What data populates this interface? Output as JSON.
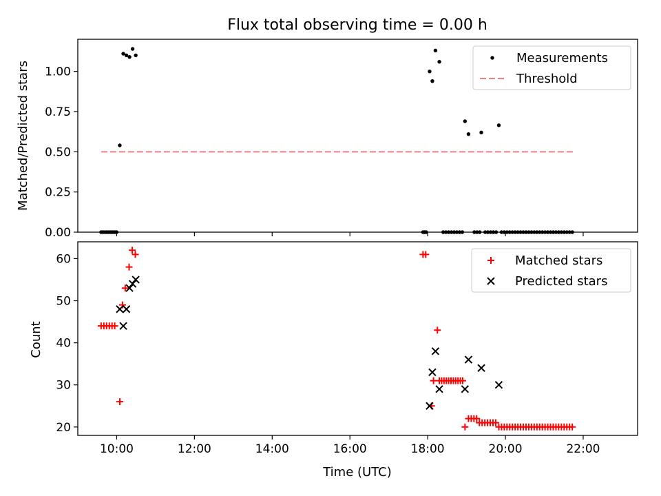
{
  "chart_data": [
    {
      "type": "scatter",
      "title": "Flux total observing time = 0.00 h",
      "xlabel": "",
      "ylabel": "Matched/Predicted stars",
      "xlim": [
        9.0,
        23.4
      ],
      "ylim": [
        0.0,
        1.2
      ],
      "xticks": [
        "10:00",
        "12:00",
        "14:00",
        "16:00",
        "18:00",
        "20:00",
        "22:00"
      ],
      "xtick_values": [
        10,
        12,
        14,
        16,
        18,
        20,
        22
      ],
      "xtick_labels_shown": false,
      "yticks": [
        "0.00",
        "0.25",
        "0.50",
        "0.75",
        "1.00"
      ],
      "ytick_values": [
        0.0,
        0.25,
        0.5,
        0.75,
        1.0
      ],
      "legend_position": "top-right",
      "grid": false,
      "series": [
        {
          "name": "Measurements",
          "marker": "dot",
          "color": "#000000",
          "points": [
            [
              9.6,
              0
            ],
            [
              9.65,
              0
            ],
            [
              9.7,
              0
            ],
            [
              9.75,
              0
            ],
            [
              9.8,
              0
            ],
            [
              9.85,
              0
            ],
            [
              9.9,
              0
            ],
            [
              9.95,
              0
            ],
            [
              10.0,
              0
            ],
            [
              10.08,
              0.54
            ],
            [
              10.17,
              1.11
            ],
            [
              10.25,
              1.1
            ],
            [
              10.33,
              1.09
            ],
            [
              10.41,
              1.14
            ],
            [
              10.49,
              1.1
            ],
            [
              17.88,
              0
            ],
            [
              17.92,
              0
            ],
            [
              17.96,
              0
            ],
            [
              18.05,
              1.0
            ],
            [
              18.12,
              0.94
            ],
            [
              18.2,
              1.13
            ],
            [
              18.3,
              1.06
            ],
            [
              18.4,
              0
            ],
            [
              18.47,
              0
            ],
            [
              18.54,
              0
            ],
            [
              18.61,
              0
            ],
            [
              18.68,
              0
            ],
            [
              18.75,
              0
            ],
            [
              18.82,
              0
            ],
            [
              18.89,
              0
            ],
            [
              18.96,
              0.69
            ],
            [
              19.05,
              0.61
            ],
            [
              19.2,
              0
            ],
            [
              19.27,
              0
            ],
            [
              19.34,
              0
            ],
            [
              19.38,
              0.62
            ],
            [
              19.48,
              0
            ],
            [
              19.55,
              0
            ],
            [
              19.62,
              0
            ],
            [
              19.69,
              0
            ],
            [
              19.76,
              0
            ],
            [
              19.83,
              0.665
            ],
            [
              19.9,
              0
            ],
            [
              19.97,
              0
            ],
            [
              20.04,
              0
            ],
            [
              20.11,
              0
            ],
            [
              20.18,
              0
            ],
            [
              20.25,
              0
            ],
            [
              20.32,
              0
            ],
            [
              20.39,
              0
            ],
            [
              20.46,
              0
            ],
            [
              20.53,
              0
            ],
            [
              20.6,
              0
            ],
            [
              20.67,
              0
            ],
            [
              20.74,
              0
            ],
            [
              20.81,
              0
            ],
            [
              20.88,
              0
            ],
            [
              20.95,
              0
            ],
            [
              21.02,
              0
            ],
            [
              21.09,
              0
            ],
            [
              21.16,
              0
            ],
            [
              21.23,
              0
            ],
            [
              21.3,
              0
            ],
            [
              21.37,
              0
            ],
            [
              21.44,
              0
            ],
            [
              21.51,
              0
            ],
            [
              21.58,
              0
            ],
            [
              21.65,
              0
            ],
            [
              21.72,
              0
            ]
          ]
        },
        {
          "name": "Threshold",
          "style": "dashed-line",
          "color": "#f08080",
          "x": [
            9.6,
            21.8
          ],
          "y": [
            0.5,
            0.5
          ]
        }
      ]
    },
    {
      "type": "scatter",
      "title": "",
      "xlabel": "Time (UTC)",
      "ylabel": "Count",
      "xlim": [
        9.0,
        23.4
      ],
      "ylim": [
        18,
        64
      ],
      "xticks": [
        "10:00",
        "12:00",
        "14:00",
        "16:00",
        "18:00",
        "20:00",
        "22:00"
      ],
      "xtick_values": [
        10,
        12,
        14,
        16,
        18,
        20,
        22
      ],
      "xtick_labels_shown": true,
      "yticks": [
        "20",
        "30",
        "40",
        "50",
        "60"
      ],
      "ytick_values": [
        20,
        30,
        40,
        50,
        60
      ],
      "legend_position": "top-right",
      "grid": false,
      "series": [
        {
          "name": "Matched stars",
          "marker": "plus",
          "color": "#ff0000",
          "points": [
            [
              9.6,
              44
            ],
            [
              9.67,
              44
            ],
            [
              9.74,
              44
            ],
            [
              9.81,
              44
            ],
            [
              9.88,
              44
            ],
            [
              9.95,
              44
            ],
            [
              10.08,
              26
            ],
            [
              10.15,
              49
            ],
            [
              10.22,
              53
            ],
            [
              10.32,
              58
            ],
            [
              10.4,
              62
            ],
            [
              10.48,
              61
            ],
            [
              17.88,
              61
            ],
            [
              17.95,
              61
            ],
            [
              18.1,
              25
            ],
            [
              18.15,
              31
            ],
            [
              18.25,
              43
            ],
            [
              18.3,
              31
            ],
            [
              18.36,
              31
            ],
            [
              18.42,
              31
            ],
            [
              18.48,
              31
            ],
            [
              18.54,
              31
            ],
            [
              18.6,
              31
            ],
            [
              18.66,
              31
            ],
            [
              18.72,
              31
            ],
            [
              18.78,
              31
            ],
            [
              18.84,
              31
            ],
            [
              18.9,
              31
            ],
            [
              18.96,
              20
            ],
            [
              19.05,
              22
            ],
            [
              19.12,
              22
            ],
            [
              19.19,
              22
            ],
            [
              19.26,
              22
            ],
            [
              19.33,
              21
            ],
            [
              19.4,
              21
            ],
            [
              19.47,
              21
            ],
            [
              19.54,
              21
            ],
            [
              19.61,
              21
            ],
            [
              19.68,
              21
            ],
            [
              19.75,
              21
            ],
            [
              19.83,
              20
            ],
            [
              19.9,
              20
            ],
            [
              19.97,
              20
            ],
            [
              20.04,
              20
            ],
            [
              20.11,
              20
            ],
            [
              20.18,
              20
            ],
            [
              20.25,
              20
            ],
            [
              20.32,
              20
            ],
            [
              20.39,
              20
            ],
            [
              20.46,
              20
            ],
            [
              20.53,
              20
            ],
            [
              20.6,
              20
            ],
            [
              20.67,
              20
            ],
            [
              20.74,
              20
            ],
            [
              20.81,
              20
            ],
            [
              20.88,
              20
            ],
            [
              20.95,
              20
            ],
            [
              21.02,
              20
            ],
            [
              21.09,
              20
            ],
            [
              21.16,
              20
            ],
            [
              21.23,
              20
            ],
            [
              21.3,
              20
            ],
            [
              21.37,
              20
            ],
            [
              21.44,
              20
            ],
            [
              21.51,
              20
            ],
            [
              21.58,
              20
            ],
            [
              21.65,
              20
            ],
            [
              21.72,
              20
            ]
          ]
        },
        {
          "name": "Predicted stars",
          "marker": "x",
          "color": "#000000",
          "points": [
            [
              10.08,
              48
            ],
            [
              10.17,
              44
            ],
            [
              10.25,
              48
            ],
            [
              10.33,
              53
            ],
            [
              10.41,
              54
            ],
            [
              10.49,
              55
            ],
            [
              18.05,
              25
            ],
            [
              18.12,
              33
            ],
            [
              18.2,
              38
            ],
            [
              18.3,
              29
            ],
            [
              18.96,
              29
            ],
            [
              19.05,
              36
            ],
            [
              19.38,
              34
            ],
            [
              19.83,
              30
            ]
          ]
        }
      ]
    }
  ]
}
